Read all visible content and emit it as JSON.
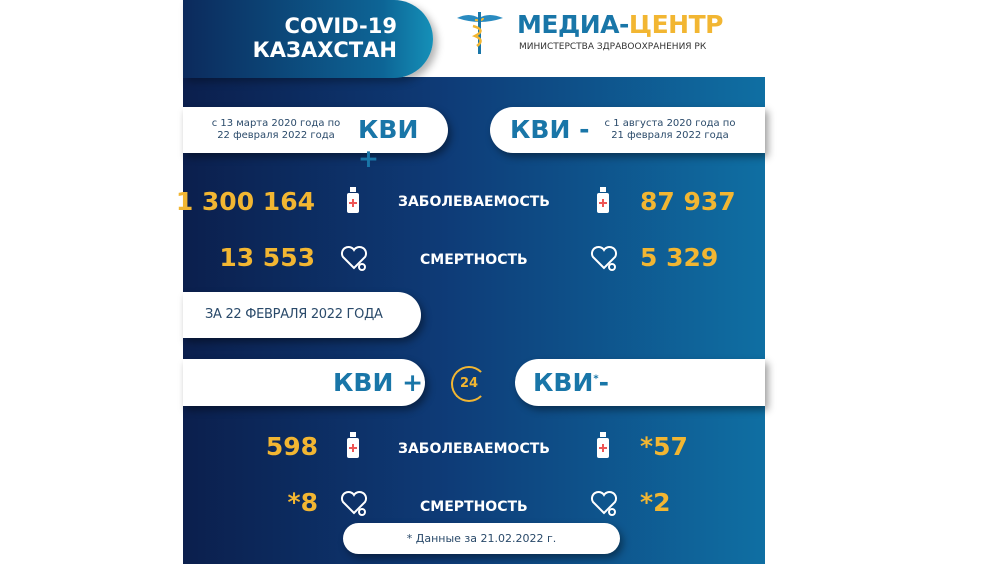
{
  "header": {
    "title_line1": "COVID-19",
    "title_line2": "КАЗАХСТАН",
    "logo_main_blue": "МЕДИА-",
    "logo_main_yellow": "ЦЕНТР",
    "logo_sub": "МИНИСТЕРСТВА ЗДРАВООХРАНЕНИЯ РК"
  },
  "cumulative": {
    "positive": {
      "label": "КВИ +",
      "period_line1": "с 13 марта 2020 года по",
      "period_line2": "22 февраля 2022 года",
      "cases": "1 300 164",
      "deaths": "13 553"
    },
    "negative": {
      "label": "КВИ -",
      "period_line1": "с 1 августа 2020 года по",
      "period_line2": "21 февраля 2022 года",
      "cases": "87 937",
      "deaths": "5 329"
    },
    "cases_label": "ЗАБОЛЕВАЕМОСТЬ",
    "deaths_label": "СМЕРТНОСТЬ"
  },
  "daily": {
    "date_label": "ЗА 22 ФЕВРАЛЯ 2022 ГОДА",
    "badge": "24",
    "positive": {
      "label": "КВИ +",
      "cases": "598",
      "deaths": "*8"
    },
    "negative": {
      "label_main": "КВИ",
      "label_star": "*",
      "label_sign": "-",
      "cases": "*57",
      "deaths": "*2"
    },
    "cases_label": "ЗАБОЛЕВАЕМОСТЬ",
    "deaths_label": "СМЕРТНОСТЬ",
    "footnote": "* Данные за 21.02.2022 г."
  },
  "colors": {
    "accent_yellow": "#f2b632",
    "kvi_blue": "#1976a8",
    "panel_dark": "#0b1f4d"
  }
}
